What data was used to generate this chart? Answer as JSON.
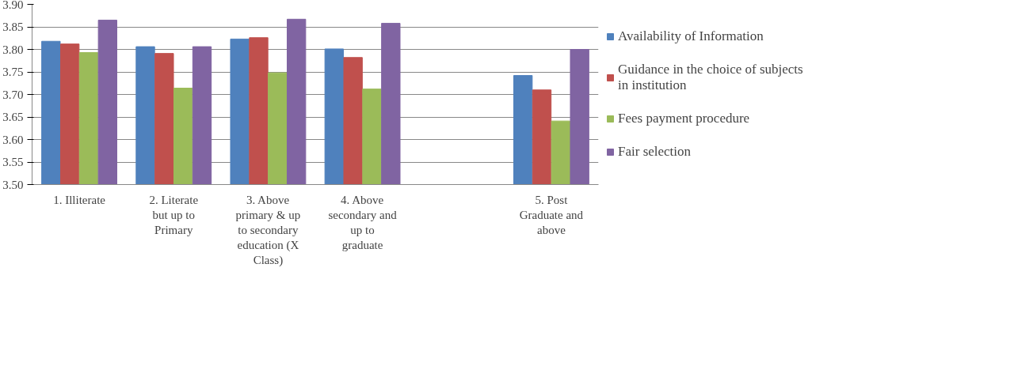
{
  "chart_data": {
    "type": "bar",
    "categories": [
      "1. Illiterate",
      "2. Literate but up to Primary",
      "3. Above primary & up to secondary education (X Class)",
      "4. Above secondary and up to graduate",
      null,
      "5. Post Graduate and above"
    ],
    "series": [
      {
        "name": "Availability of Information",
        "color": "#4f81bd",
        "values": [
          3.818,
          3.806,
          3.823,
          3.801,
          null,
          3.742
        ]
      },
      {
        "name": "Guidance in the choice of subjects in institution",
        "color": "#c0504d",
        "values": [
          3.812,
          3.791,
          3.826,
          3.782,
          null,
          3.71
        ]
      },
      {
        "name": "Fees payment procedure",
        "color": "#9bbb59",
        "values": [
          3.793,
          3.714,
          3.748,
          3.712,
          null,
          3.641
        ]
      },
      {
        "name": "Fair selection",
        "color": "#8064a2",
        "values": [
          3.865,
          3.806,
          3.867,
          3.858,
          null,
          3.8
        ]
      }
    ],
    "ylim": [
      3.5,
      3.9
    ],
    "yticks": [
      {
        "value": 3.5,
        "label": "3.50"
      },
      {
        "value": 3.55,
        "label": "3.55"
      },
      {
        "value": 3.6,
        "label": "3.60"
      },
      {
        "value": 3.65,
        "label": "3.65"
      },
      {
        "value": 3.7,
        "label": "3.70"
      },
      {
        "value": 3.75,
        "label": "3.75"
      },
      {
        "value": 3.8,
        "label": "3.80"
      },
      {
        "value": 3.85,
        "label": "3.85"
      },
      {
        "value": 3.9,
        "label": "3.90"
      }
    ],
    "grid": "y",
    "legend": "right"
  }
}
